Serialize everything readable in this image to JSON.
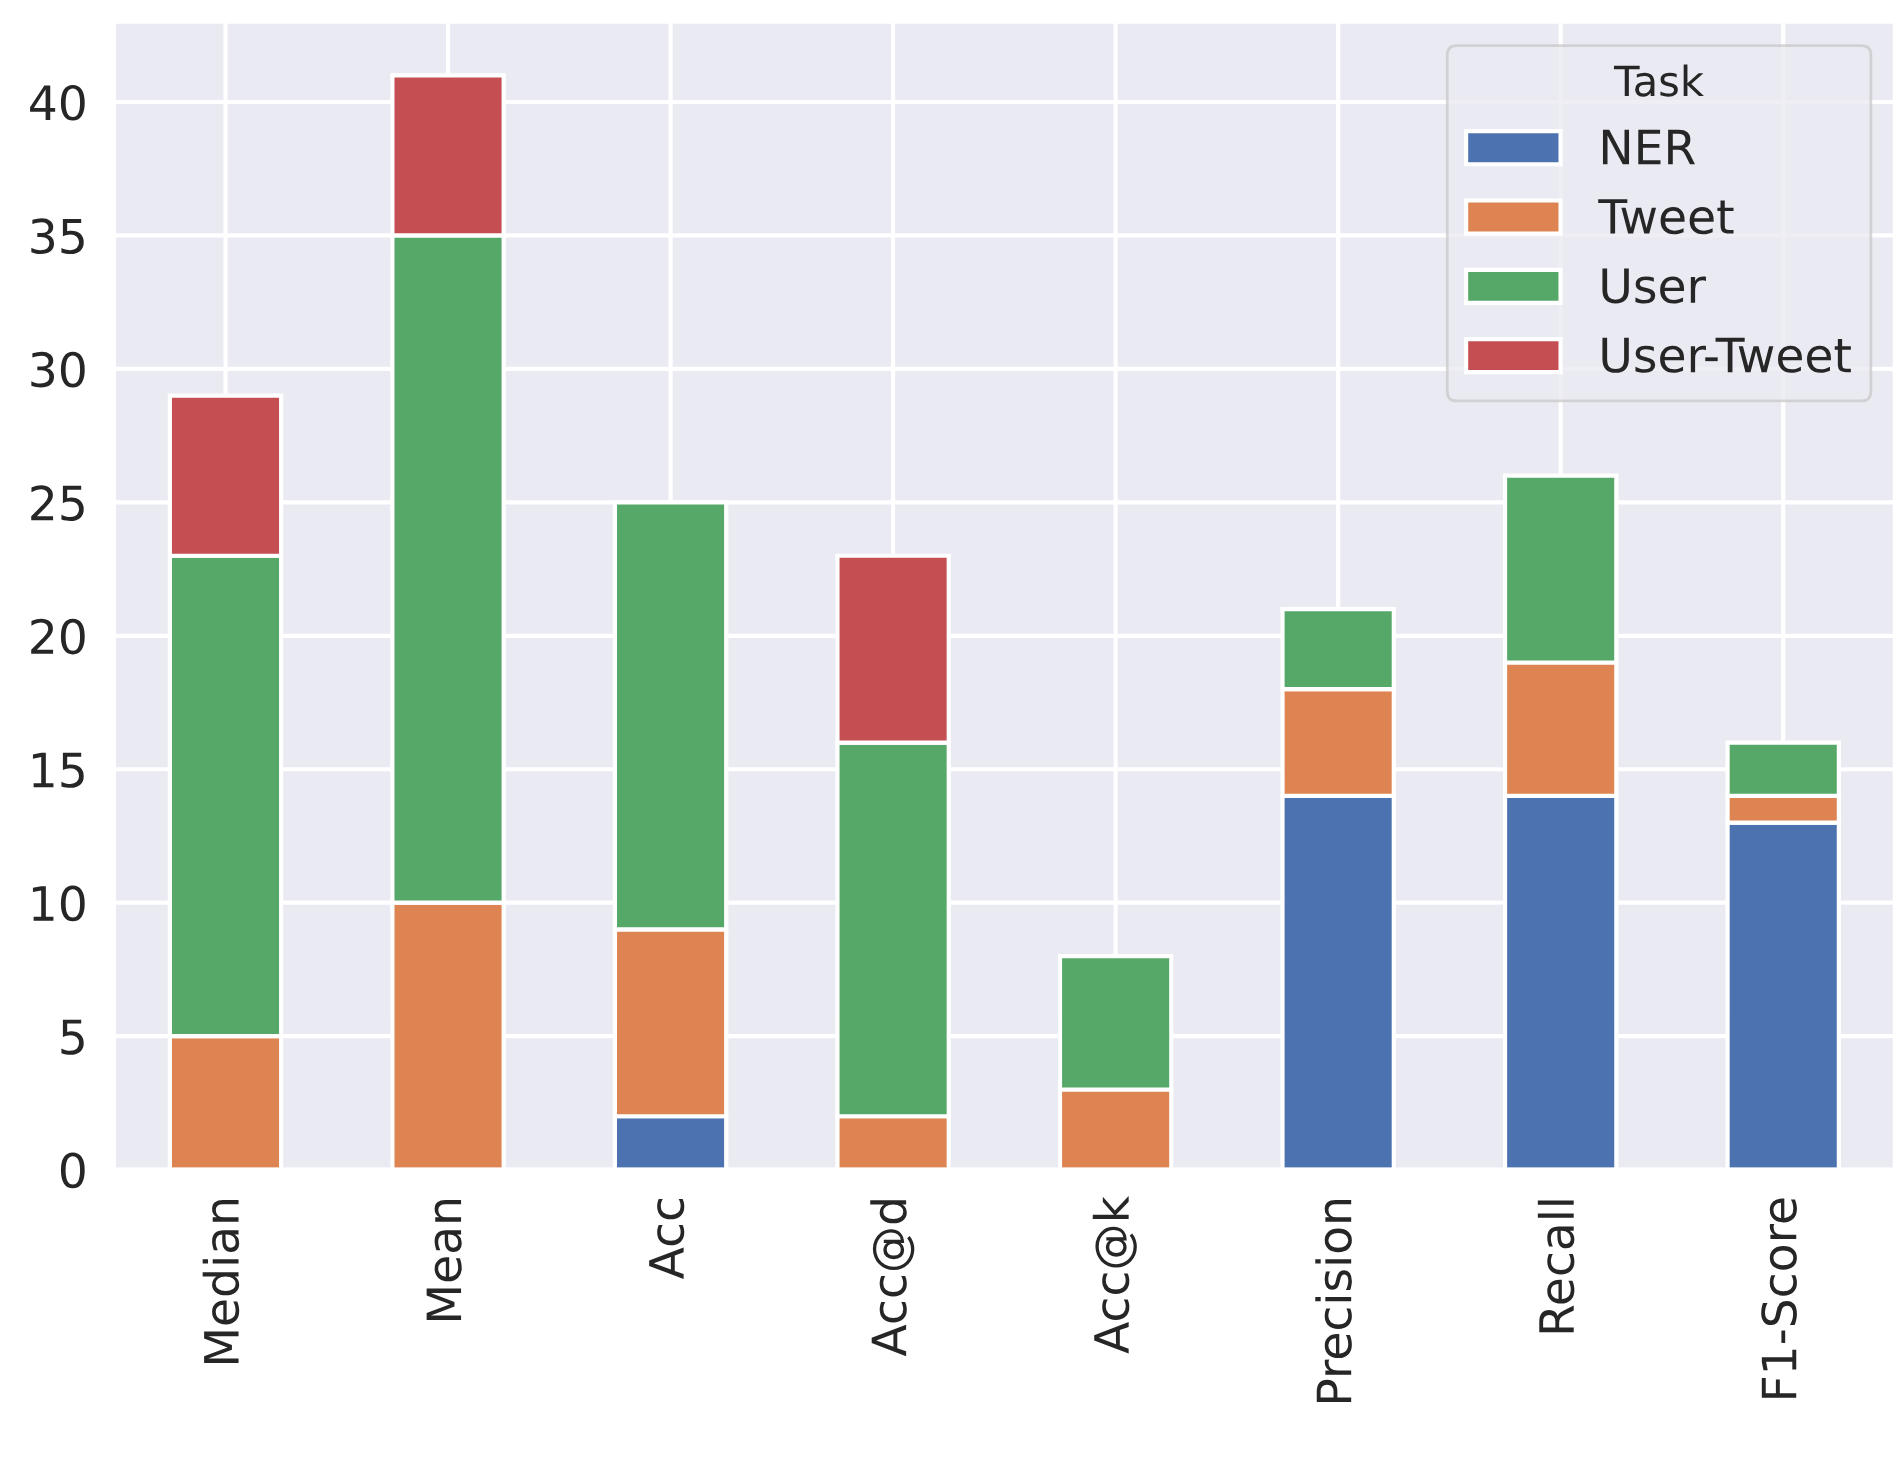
{
  "chart_data": {
    "type": "bar",
    "stacked": true,
    "legend_title": "Task",
    "legend": "top right",
    "grid": true,
    "categories": [
      "Median",
      "Mean",
      "Acc",
      "Acc@d",
      "Acc@k",
      "Precision",
      "Recall",
      "F1-Score"
    ],
    "series": [
      {
        "name": "NER",
        "color": "#4c72b0",
        "values": [
          null,
          null,
          2,
          null,
          null,
          14,
          14,
          13
        ]
      },
      {
        "name": "Tweet",
        "color": "#dd8452",
        "values": [
          5,
          10,
          7,
          2,
          3,
          4,
          5,
          1
        ]
      },
      {
        "name": "User",
        "color": "#55a868",
        "values": [
          18,
          25,
          16,
          14,
          5,
          3,
          7,
          2
        ]
      },
      {
        "name": "User-Tweet",
        "color": "#c44e52",
        "values": [
          6,
          6,
          null,
          7,
          null,
          null,
          null,
          null
        ]
      }
    ],
    "ylim": [
      0,
      43
    ],
    "yticks": [
      0,
      5,
      10,
      15,
      20,
      25,
      30,
      35,
      40
    ]
  }
}
